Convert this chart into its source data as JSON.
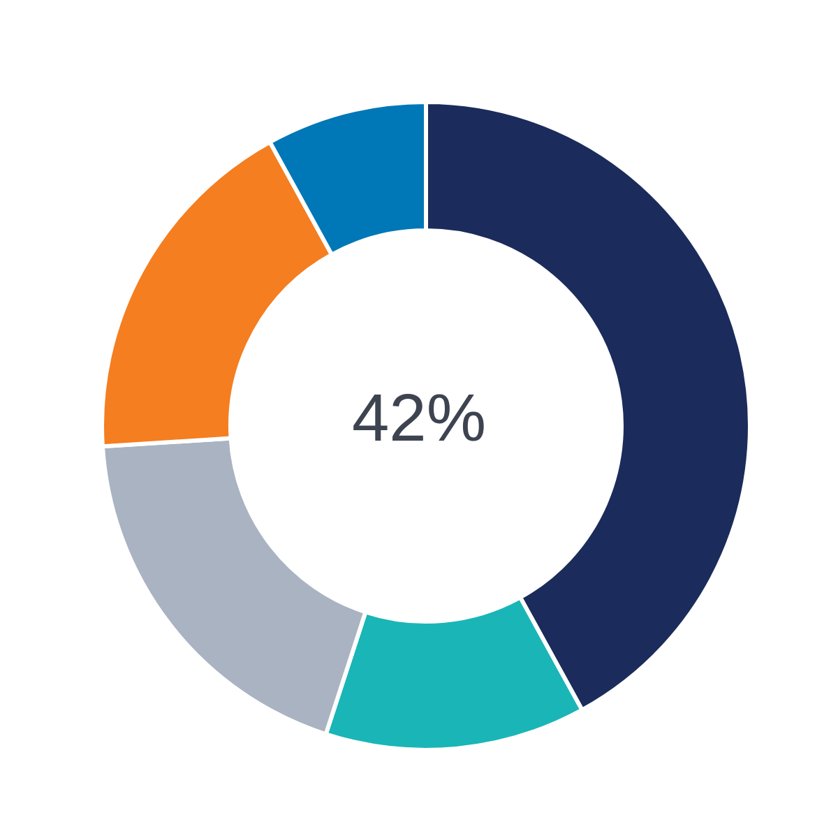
{
  "chart_data": {
    "type": "donut",
    "categories": [
      null,
      null,
      null,
      null,
      null
    ],
    "values": [
      42,
      13,
      19,
      18,
      8
    ],
    "colors": [
      "#1b2b5b",
      "#1ab5b7",
      "#a9b3c2",
      "#f47e20",
      "#0077b6"
    ],
    "annotations": [
      "42%"
    ],
    "legend": false
  }
}
